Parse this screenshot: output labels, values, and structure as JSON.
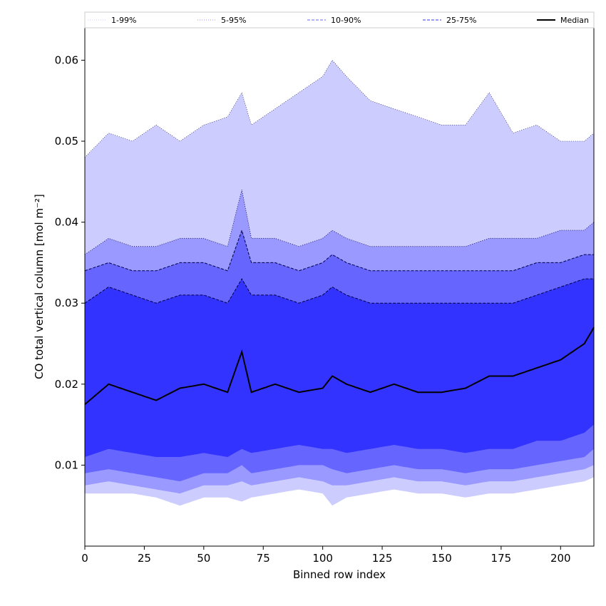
{
  "chart_data": {
    "type": "area",
    "xlabel": "Binned row index",
    "ylabel": "CO total vertical column [mol m⁻²]",
    "xlim": [
      0,
      214
    ],
    "ylim": [
      0.0,
      0.064
    ],
    "x_ticks": [
      0,
      25,
      50,
      75,
      100,
      125,
      150,
      175,
      200
    ],
    "x_tick_labels": [
      "0",
      "25",
      "50",
      "75",
      "100",
      "125",
      "150",
      "175",
      "200"
    ],
    "y_ticks": [
      0.01,
      0.02,
      0.03,
      0.04,
      0.05,
      0.06
    ],
    "y_tick_labels": [
      "0.01",
      "0.02",
      "0.03",
      "0.04",
      "0.05",
      "0.06"
    ],
    "legend_placement": "top, full width, single row",
    "legend": [
      {
        "label": "1-99%",
        "color": "#ccccff",
        "dash": "dotted"
      },
      {
        "label": "5-95%",
        "color": "#9999ff",
        "dash": "dotted"
      },
      {
        "label": "10-90%",
        "color": "#6666ff",
        "dash": "dashed"
      },
      {
        "label": "25-75%",
        "color": "#3333ff",
        "dash": "dashed"
      },
      {
        "label": "Median",
        "color": "#000000",
        "dash": "solid"
      }
    ],
    "sample_x": [
      0,
      10,
      20,
      30,
      40,
      50,
      60,
      66,
      70,
      80,
      90,
      100,
      104,
      110,
      120,
      130,
      140,
      150,
      160,
      170,
      180,
      190,
      200,
      210,
      214
    ],
    "series": [
      {
        "name": "Median",
        "values": [
          0.0175,
          0.02,
          0.019,
          0.018,
          0.0195,
          0.02,
          0.019,
          0.024,
          0.019,
          0.02,
          0.019,
          0.0195,
          0.021,
          0.02,
          0.019,
          0.02,
          0.019,
          0.019,
          0.0195,
          0.021,
          0.021,
          0.022,
          0.023,
          0.025,
          0.027
        ]
      },
      {
        "name": "25-75% upper",
        "values": [
          0.03,
          0.032,
          0.031,
          0.03,
          0.031,
          0.031,
          0.03,
          0.033,
          0.031,
          0.031,
          0.03,
          0.031,
          0.032,
          0.031,
          0.03,
          0.03,
          0.03,
          0.03,
          0.03,
          0.03,
          0.03,
          0.031,
          0.032,
          0.033,
          0.033
        ]
      },
      {
        "name": "25-75% lower",
        "values": [
          0.011,
          0.012,
          0.0115,
          0.011,
          0.011,
          0.0115,
          0.011,
          0.012,
          0.0115,
          0.012,
          0.0125,
          0.012,
          0.012,
          0.0115,
          0.012,
          0.0125,
          0.012,
          0.012,
          0.0115,
          0.012,
          0.012,
          0.013,
          0.013,
          0.014,
          0.015
        ]
      },
      {
        "name": "10-90% upper",
        "values": [
          0.034,
          0.035,
          0.034,
          0.034,
          0.035,
          0.035,
          0.034,
          0.039,
          0.035,
          0.035,
          0.034,
          0.035,
          0.036,
          0.035,
          0.034,
          0.034,
          0.034,
          0.034,
          0.034,
          0.034,
          0.034,
          0.035,
          0.035,
          0.036,
          0.036
        ]
      },
      {
        "name": "10-90% lower",
        "values": [
          0.009,
          0.0095,
          0.009,
          0.0085,
          0.008,
          0.009,
          0.009,
          0.01,
          0.009,
          0.0095,
          0.01,
          0.01,
          0.0095,
          0.009,
          0.0095,
          0.01,
          0.0095,
          0.0095,
          0.009,
          0.0095,
          0.0095,
          0.01,
          0.0105,
          0.011,
          0.012
        ]
      },
      {
        "name": "5-95% upper",
        "values": [
          0.036,
          0.038,
          0.037,
          0.037,
          0.038,
          0.038,
          0.037,
          0.044,
          0.038,
          0.038,
          0.037,
          0.038,
          0.039,
          0.038,
          0.037,
          0.037,
          0.037,
          0.037,
          0.037,
          0.038,
          0.038,
          0.038,
          0.039,
          0.039,
          0.04
        ]
      },
      {
        "name": "5-95% lower",
        "values": [
          0.0075,
          0.008,
          0.0075,
          0.007,
          0.0065,
          0.0075,
          0.0075,
          0.008,
          0.0075,
          0.008,
          0.0085,
          0.008,
          0.0075,
          0.0075,
          0.008,
          0.0085,
          0.008,
          0.008,
          0.0075,
          0.008,
          0.008,
          0.0085,
          0.009,
          0.0095,
          0.01
        ]
      },
      {
        "name": "1-99% upper",
        "values": [
          0.048,
          0.051,
          0.05,
          0.052,
          0.05,
          0.052,
          0.053,
          0.056,
          0.052,
          0.054,
          0.056,
          0.058,
          0.06,
          0.058,
          0.055,
          0.054,
          0.053,
          0.052,
          0.052,
          0.056,
          0.051,
          0.052,
          0.05,
          0.05,
          0.051
        ]
      },
      {
        "name": "1-99% lower",
        "values": [
          0.0065,
          0.0065,
          0.0065,
          0.006,
          0.005,
          0.006,
          0.006,
          0.0055,
          0.006,
          0.0065,
          0.007,
          0.0065,
          0.005,
          0.006,
          0.0065,
          0.007,
          0.0065,
          0.0065,
          0.006,
          0.0065,
          0.0065,
          0.007,
          0.0075,
          0.008,
          0.0085
        ]
      }
    ]
  }
}
